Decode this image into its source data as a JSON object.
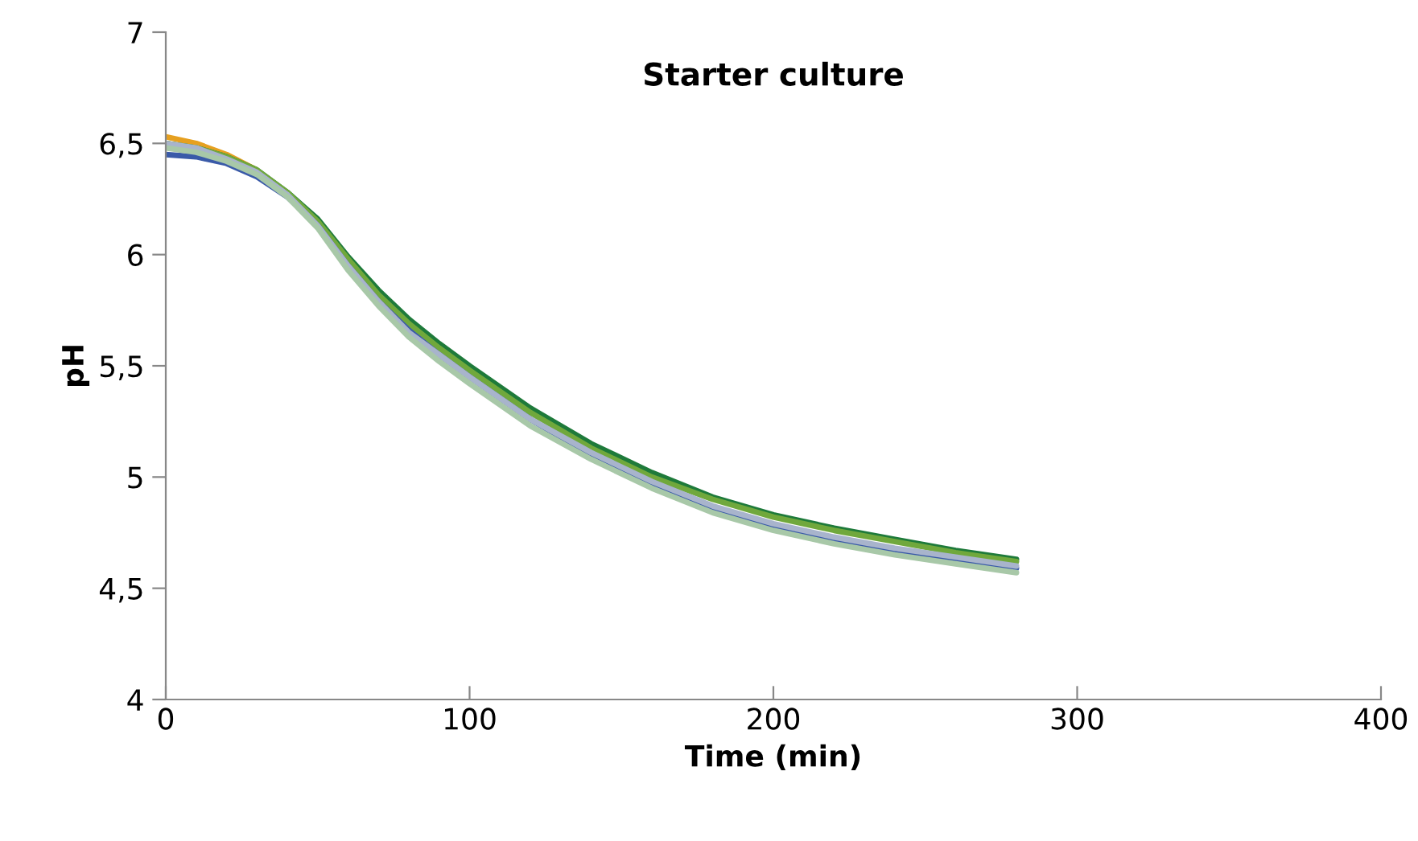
{
  "chart_data": {
    "type": "line",
    "title": "Starter culture",
    "xlabel": "Time (min)",
    "ylabel": "pH",
    "x": [
      0,
      10,
      20,
      30,
      40,
      50,
      60,
      70,
      80,
      90,
      100,
      120,
      140,
      160,
      180,
      200,
      220,
      240,
      260,
      280
    ],
    "series": [
      {
        "color": "#e6a020",
        "values": [
          6.53,
          6.5,
          6.45,
          6.38,
          null,
          null,
          null,
          null,
          null,
          null,
          null,
          null,
          null,
          null,
          null,
          null,
          null,
          null,
          null,
          null
        ]
      },
      {
        "color": "#1e7a3a",
        "values": [
          6.5,
          6.48,
          6.44,
          6.38,
          6.28,
          6.16,
          5.99,
          5.84,
          5.71,
          5.6,
          5.5,
          5.31,
          5.15,
          5.02,
          4.91,
          4.83,
          4.77,
          4.72,
          4.67,
          4.63
        ]
      },
      {
        "color": "#70a83c",
        "values": [
          6.5,
          6.48,
          6.44,
          6.38,
          6.28,
          6.15,
          5.98,
          5.82,
          5.69,
          5.58,
          5.48,
          5.29,
          5.13,
          5.0,
          4.9,
          4.82,
          4.76,
          4.71,
          4.66,
          4.62
        ]
      },
      {
        "color": "#3a5aa8",
        "values": [
          6.45,
          6.44,
          6.41,
          6.35,
          6.26,
          6.13,
          5.95,
          5.79,
          5.66,
          5.55,
          5.45,
          5.26,
          5.1,
          4.97,
          4.86,
          4.78,
          4.72,
          4.67,
          4.63,
          4.59
        ]
      },
      {
        "color": "#a8b4cc",
        "values": [
          6.5,
          6.48,
          6.43,
          6.37,
          6.27,
          6.13,
          5.95,
          5.79,
          5.65,
          5.55,
          5.45,
          5.26,
          5.11,
          4.98,
          4.87,
          4.79,
          4.73,
          4.68,
          4.64,
          4.6
        ]
      },
      {
        "color": "#a8c8a8",
        "values": [
          6.48,
          6.46,
          6.42,
          6.36,
          6.26,
          6.12,
          5.93,
          5.77,
          5.63,
          5.52,
          5.42,
          5.23,
          5.08,
          4.95,
          4.84,
          4.76,
          4.7,
          4.65,
          4.61,
          4.57
        ]
      }
    ],
    "xlim": [
      0,
      400
    ],
    "xticks": [
      0,
      100,
      200,
      300,
      400
    ],
    "ylim": [
      4,
      7
    ],
    "yticks": [
      4,
      {
        "value": 4.5,
        "label": "4,5"
      },
      5,
      {
        "value": 5.5,
        "label": "5,5"
      },
      6,
      {
        "value": 6.5,
        "label": "6,5"
      },
      7
    ],
    "grid": false,
    "legend": false,
    "marker": "none",
    "line_style": "solid"
  }
}
